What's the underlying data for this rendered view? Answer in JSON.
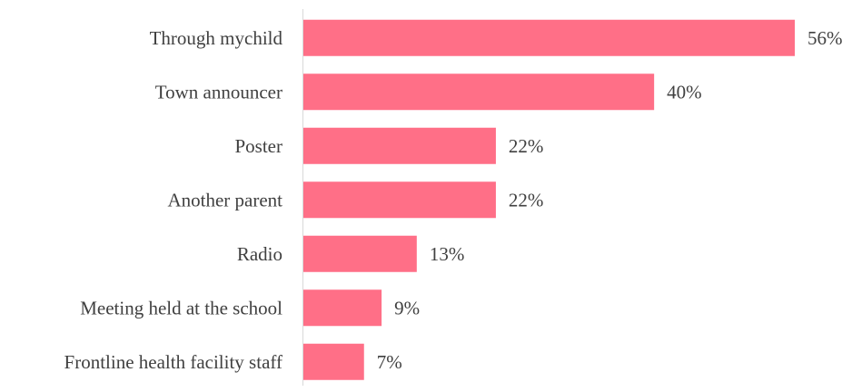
{
  "chart_data": {
    "type": "bar",
    "orientation": "horizontal",
    "categories": [
      "Through mychild",
      "Town announcer",
      "Poster",
      "Another parent",
      "Radio",
      "Meeting held at the school",
      "Frontline health facility staff"
    ],
    "values": [
      56,
      40,
      22,
      22,
      13,
      9,
      7
    ],
    "value_labels": [
      "56%",
      "40%",
      "22%",
      "22%",
      "13%",
      "9%",
      "7%"
    ],
    "unit": "%",
    "xlim": [
      0,
      56
    ],
    "title": "",
    "xlabel": "",
    "ylabel": "",
    "grid": false,
    "legend": "none",
    "colors": {
      "bar": "#FF6F87",
      "axis": "#D9D9D9",
      "text": "#404040"
    }
  }
}
